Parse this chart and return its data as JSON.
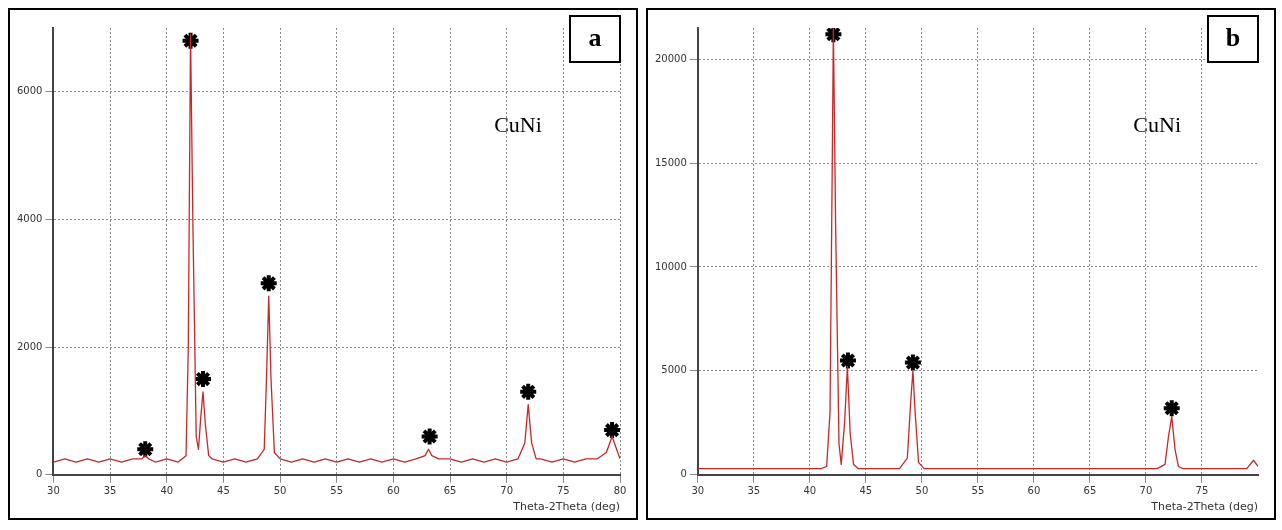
{
  "chart_data": [
    {
      "type": "line",
      "title": "a",
      "xlabel": "Theta-2Theta (deg)",
      "annotations": [
        "CuNi"
      ],
      "xlim": [
        30,
        80
      ],
      "xticks": [
        30,
        35,
        40,
        45,
        50,
        55,
        60,
        65,
        70,
        75,
        80
      ],
      "ylim": [
        0,
        7000
      ],
      "yticks": [
        0,
        2000,
        4000,
        6000
      ],
      "grid": true,
      "series": [
        {
          "type": "line",
          "color": "#c62828",
          "x": [
            30,
            31,
            32,
            33,
            34,
            35,
            36,
            37,
            37.8,
            38.1,
            38.4,
            39,
            40,
            41,
            41.7,
            41.9,
            42.1,
            42.3,
            42.6,
            42.8,
            43.0,
            43.2,
            43.4,
            43.7,
            44,
            45,
            46,
            47,
            48,
            48.6,
            48.8,
            49.0,
            49.2,
            49.5,
            50,
            51,
            52,
            53,
            54,
            55,
            56,
            57,
            58,
            59,
            60,
            61,
            62,
            62.8,
            63.1,
            63.4,
            64,
            65,
            66,
            67,
            68,
            69,
            70,
            71,
            71.6,
            71.9,
            72.2,
            72.6,
            73,
            74,
            75,
            76,
            77,
            78,
            78.8,
            79.3,
            79.7,
            80
          ],
          "values": [
            200,
            250,
            200,
            250,
            200,
            250,
            200,
            250,
            250,
            300,
            250,
            200,
            250,
            200,
            300,
            2000,
            6900,
            4000,
            600,
            400,
            900,
            1300,
            800,
            300,
            250,
            200,
            250,
            200,
            250,
            400,
            1500,
            2800,
            1500,
            350,
            250,
            200,
            250,
            200,
            250,
            200,
            250,
            200,
            250,
            200,
            250,
            200,
            250,
            300,
            400,
            300,
            250,
            250,
            200,
            250,
            200,
            250,
            200,
            250,
            500,
            1100,
            500,
            250,
            250,
            200,
            250,
            200,
            250,
            250,
            350,
            600,
            400,
            250
          ]
        },
        {
          "type": "scatter",
          "marker": "cross",
          "color": "#000000",
          "x": [
            38.1,
            42.1,
            43.2,
            49.0,
            63.2,
            71.9,
            79.3
          ],
          "values": [
            400,
            6800,
            1500,
            3000,
            600,
            1300,
            700
          ]
        }
      ]
    },
    {
      "type": "line",
      "title": "b",
      "xlabel": "Theta-2Theta (deg)",
      "annotations": [
        "CuNi"
      ],
      "xlim": [
        30,
        80
      ],
      "xticks": [
        30,
        35,
        40,
        45,
        50,
        55,
        60,
        65,
        70,
        75
      ],
      "ylim": [
        0,
        21500
      ],
      "yticks": [
        0,
        5000,
        10000,
        15000,
        20000
      ],
      "grid": true,
      "series": [
        {
          "type": "line",
          "color": "#c62828",
          "x": [
            30,
            32,
            34,
            36,
            38,
            40,
            41,
            41.5,
            41.8,
            42.0,
            42.1,
            42.3,
            42.6,
            42.8,
            43.1,
            43.35,
            43.6,
            43.9,
            44.3,
            46,
            48,
            48.7,
            49.0,
            49.2,
            49.4,
            49.7,
            50.2,
            52,
            54,
            56,
            58,
            60,
            62,
            64,
            66,
            68,
            70,
            71,
            71.7,
            72.0,
            72.3,
            72.6,
            72.9,
            73.3,
            75,
            77,
            79,
            79.6,
            80
          ],
          "values": [
            300,
            300,
            300,
            300,
            300,
            300,
            300,
            400,
            3000,
            15000,
            21500,
            12000,
            1500,
            500,
            2500,
            5200,
            2000,
            500,
            300,
            300,
            300,
            800,
            3500,
            5000,
            3000,
            600,
            300,
            300,
            300,
            300,
            300,
            300,
            300,
            300,
            300,
            300,
            300,
            300,
            500,
            1800,
            2800,
            1200,
            400,
            300,
            300,
            300,
            300,
            700,
            400
          ]
        },
        {
          "type": "scatter",
          "marker": "cross",
          "color": "#000000",
          "x": [
            42.1,
            43.4,
            49.2,
            72.3
          ],
          "values": [
            21200,
            5500,
            5400,
            3200
          ]
        }
      ]
    }
  ]
}
